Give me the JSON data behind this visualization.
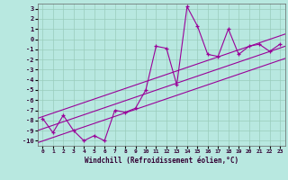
{
  "xlabel": "Windchill (Refroidissement éolien,°C)",
  "bg_color": "#b8e8e0",
  "line_color": "#990099",
  "grid_color": "#99ccbb",
  "x_data": [
    0,
    1,
    2,
    3,
    4,
    5,
    6,
    7,
    8,
    9,
    10,
    11,
    12,
    13,
    14,
    15,
    16,
    17,
    18,
    19,
    20,
    21,
    22,
    23
  ],
  "y_data": [
    -7.8,
    -9.2,
    -7.5,
    -9.0,
    -10.0,
    -9.5,
    -10.0,
    -7.0,
    -7.2,
    -6.8,
    -5.0,
    -0.7,
    -0.9,
    -4.5,
    3.2,
    1.3,
    -1.5,
    -1.7,
    1.0,
    -1.5,
    -0.7,
    -0.5,
    -1.2,
    -0.5
  ],
  "ylim": [
    -10.5,
    3.5
  ],
  "xlim": [
    -0.5,
    23.5
  ],
  "xticks": [
    0,
    1,
    2,
    3,
    4,
    5,
    6,
    7,
    8,
    9,
    10,
    11,
    12,
    13,
    14,
    15,
    16,
    17,
    18,
    19,
    20,
    21,
    22,
    23
  ],
  "yticks": [
    3,
    2,
    1,
    0,
    -1,
    -2,
    -3,
    -4,
    -5,
    -6,
    -7,
    -8,
    -9,
    -10
  ],
  "reg_lines": [
    {
      "x": [
        -0.5,
        23.5
      ],
      "y": [
        -7.8,
        0.5
      ]
    },
    {
      "x": [
        -0.5,
        23.5
      ],
      "y": [
        -9.0,
        -0.7
      ]
    },
    {
      "x": [
        -0.5,
        23.5
      ],
      "y": [
        -10.2,
        -1.9
      ]
    }
  ]
}
